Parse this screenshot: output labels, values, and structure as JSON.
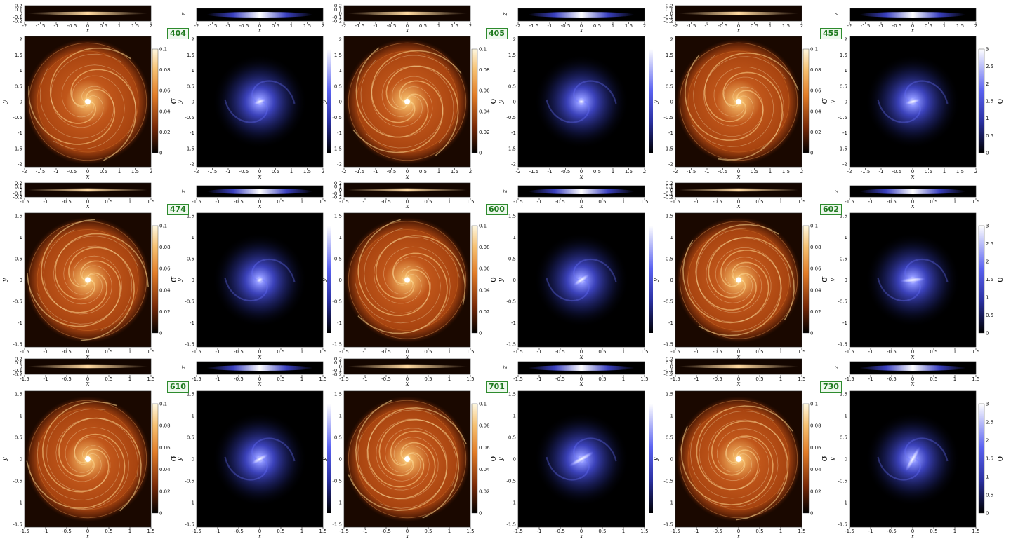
{
  "figure": {
    "rows": [
      {
        "top_tick_labels": [
          "-2",
          "-1.5",
          "-1",
          "-0.5",
          "0",
          "0.5",
          "1",
          "1.5",
          "2"
        ],
        "blue_tick_labels": [
          "-2",
          "-1.5",
          "-1",
          "-0.5",
          "0",
          "0.5",
          "1",
          "1.5",
          "2"
        ],
        "groups": [
          {
            "run": "404",
            "gas_cbar": "gas",
            "star_cbar": "none"
          },
          {
            "run": "405",
            "gas_cbar": "gas",
            "star_cbar": "none"
          },
          {
            "run": "455",
            "gas_cbar": "gas",
            "star_cbar": "stars"
          }
        ]
      },
      {
        "top_tick_labels": [
          "-1.5",
          "-1",
          "-0.5",
          "0",
          "0.5",
          "1",
          "1.5"
        ],
        "blue_tick_labels": [
          "-1.5",
          "-1",
          "-0.5",
          "0",
          "0.5",
          "1",
          "1.5"
        ],
        "groups": [
          {
            "run": "474",
            "gas_cbar": "gas",
            "star_cbar": "none"
          },
          {
            "run": "600",
            "gas_cbar": "gas",
            "star_cbar": "none"
          },
          {
            "run": "602",
            "gas_cbar": "gas",
            "star_cbar": "stars"
          }
        ]
      },
      {
        "top_tick_labels": [
          "-1.5",
          "-1",
          "-0.5",
          "0",
          "0.5",
          "1",
          "1.5"
        ],
        "blue_tick_labels": [
          "-1.5",
          "-1",
          "-0.5",
          "0",
          "0.5",
          "1",
          "1.5"
        ],
        "groups": [
          {
            "run": "610",
            "gas_cbar": "gas",
            "star_cbar": "none"
          },
          {
            "run": "701",
            "gas_cbar": "gas",
            "star_cbar": "none"
          },
          {
            "run": "730",
            "gas_cbar": "gas",
            "star_cbar": "stars"
          }
        ]
      }
    ],
    "axis_labels": {
      "x": "x",
      "y": "y",
      "z": "z"
    },
    "z_tick_labels": [
      "0.2",
      "0.1",
      "0",
      "-0.1",
      "-0.2"
    ],
    "y_tick_labels_row1": [
      "2",
      "1.5",
      "1",
      "0.5",
      "0",
      "-0.5",
      "-1",
      "-1.5",
      "-2"
    ],
    "y_tick_labels_row23": [
      "1.5",
      "1",
      "0.5",
      "0",
      "-0.5",
      "-1",
      "-1.5"
    ],
    "colorbars": {
      "gas": {
        "label": "σ",
        "tick_labels": [
          "0.1",
          "0.08",
          "0.06",
          "0.04",
          "0.02",
          "0"
        ]
      },
      "stars": {
        "label": "σ",
        "tick_labels": [
          "3",
          "2.5",
          "2",
          "1.5",
          "1",
          "0.5",
          "0"
        ]
      }
    },
    "colors": {
      "gas_low": "#180800",
      "gas_mid": "#c0561a",
      "gas_high": "#fff0b0",
      "star_low": "#000000",
      "star_mid": "#4a52e8",
      "star_high": "#ffffff",
      "label_green": "#1f7a1f"
    }
  }
}
